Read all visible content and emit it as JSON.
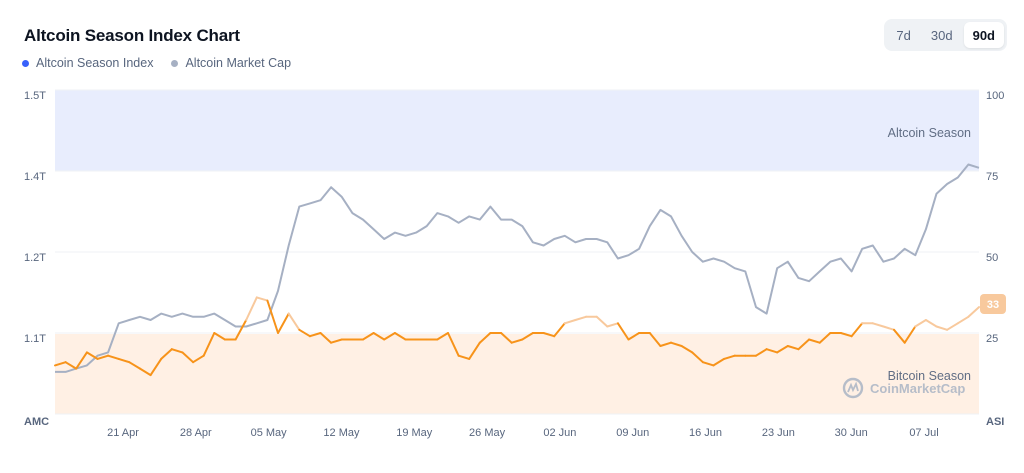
{
  "header": {
    "title": "Altcoin Season Index Chart",
    "legend": [
      {
        "label": "Altcoin Season Index",
        "color": "#3861fb"
      },
      {
        "label": "Altcoin Market Cap",
        "color": "#a6b0c3"
      }
    ],
    "ranges": [
      {
        "label": "7d",
        "active": false
      },
      {
        "label": "30d",
        "active": false
      },
      {
        "label": "90d",
        "active": true
      }
    ]
  },
  "chart_data": {
    "type": "line",
    "left_axis": {
      "label": "AMC",
      "ticks": [
        "1.5T",
        "1.4T",
        "1.2T",
        "1.1T"
      ]
    },
    "right_axis": {
      "label": "ASI",
      "ticks": [
        100,
        75,
        50,
        25
      ],
      "range": [
        0,
        100
      ]
    },
    "x_ticks": [
      "21 Apr",
      "28 Apr",
      "05 May",
      "12 May",
      "19 May",
      "26 May",
      "02 Jun",
      "09 Jun",
      "16 Jun",
      "23 Jun",
      "30 Jun",
      "07 Jul"
    ],
    "bands": [
      {
        "label": "Altcoin Season",
        "from": 75,
        "to": 100,
        "color": "#e8edfd"
      },
      {
        "label": "Bitcoin Season",
        "from": 0,
        "to": 25,
        "color": "#fff0e4"
      }
    ],
    "current_value": "33",
    "watermark": "CoinMarketCap",
    "series": [
      {
        "name": "Altcoin Season Index",
        "axis": "right",
        "values": [
          15,
          16,
          14,
          19,
          17,
          18,
          17,
          16,
          14,
          12,
          17,
          20,
          19,
          16,
          18,
          25,
          23,
          23,
          29,
          36,
          35,
          25,
          31,
          26,
          24,
          25,
          22,
          23,
          23,
          23,
          25,
          23,
          25,
          23,
          23,
          23,
          23,
          25,
          18,
          17,
          22,
          25,
          25,
          22,
          23,
          25,
          25,
          24,
          28,
          29,
          30,
          30,
          27,
          28,
          23,
          25,
          25,
          21,
          22,
          21,
          19,
          16,
          15,
          17,
          18,
          18,
          18,
          20,
          19,
          21,
          20,
          23,
          22,
          25,
          25,
          24,
          28,
          28,
          27,
          26,
          22,
          27,
          29,
          27,
          26,
          28,
          30,
          33
        ]
      },
      {
        "name": "Altcoin Market Cap",
        "axis": "right",
        "values": [
          13,
          13,
          14,
          15,
          18,
          19,
          28,
          29,
          30,
          29,
          31,
          30,
          31,
          30,
          30,
          31,
          29,
          27,
          27,
          28,
          29,
          38,
          52,
          64,
          65,
          66,
          70,
          67,
          62,
          60,
          57,
          54,
          56,
          55,
          56,
          58,
          62,
          61,
          59,
          61,
          60,
          64,
          60,
          60,
          58,
          53,
          52,
          54,
          55,
          53,
          54,
          54,
          53,
          48,
          49,
          51,
          58,
          63,
          61,
          55,
          50,
          47,
          48,
          47,
          45,
          44,
          33,
          31,
          45,
          47,
          42,
          41,
          44,
          47,
          48,
          44,
          51,
          52,
          47,
          48,
          51,
          49,
          57,
          68,
          71,
          73,
          77,
          76
        ]
      }
    ]
  }
}
